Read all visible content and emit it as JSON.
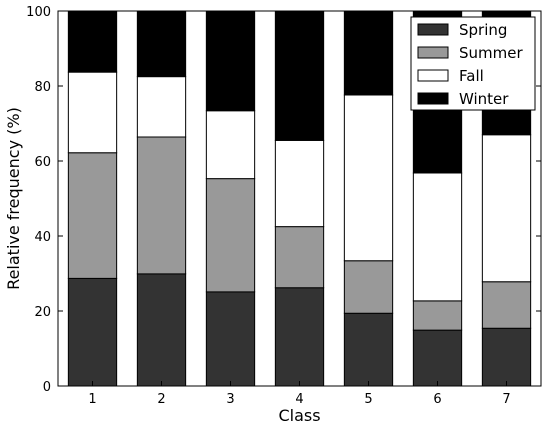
{
  "chart_data": {
    "type": "bar",
    "stacked": true,
    "xlabel": "Class",
    "ylabel": "Relative frequency (%)",
    "categories": [
      "1",
      "2",
      "3",
      "4",
      "5",
      "6",
      "7"
    ],
    "ylim": [
      0,
      100
    ],
    "yticks": [
      "0",
      "20",
      "40",
      "60",
      "80",
      "100"
    ],
    "legend_position": "top-right",
    "grid": false,
    "series": [
      {
        "name": "Spring",
        "color": "#333333",
        "values": [
          28.7,
          29.9,
          25.1,
          26.2,
          19.4,
          14.9,
          15.4
        ]
      },
      {
        "name": "Summer",
        "color": "#999999",
        "values": [
          33.5,
          36.5,
          30.2,
          16.3,
          14.0,
          7.8,
          12.4
        ]
      },
      {
        "name": "Fall",
        "color": "#ffffff",
        "values": [
          21.5,
          16.1,
          18.1,
          23.0,
          44.2,
          34.1,
          39.2
        ]
      },
      {
        "name": "Winter",
        "color": "#000000",
        "values": [
          16.3,
          17.5,
          26.6,
          34.5,
          22.4,
          43.2,
          33.0
        ]
      }
    ]
  }
}
